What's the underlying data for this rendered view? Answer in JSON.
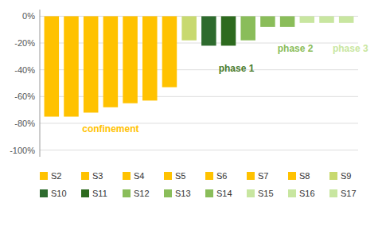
{
  "chart_data": {
    "type": "bar",
    "categories": [
      "S2",
      "S3",
      "S4",
      "S5",
      "S6",
      "S7",
      "S8",
      "S9",
      "S10",
      "S11",
      "S12",
      "S13",
      "S14",
      "S15",
      "S16",
      "S17"
    ],
    "values": [
      -75,
      -75,
      -72,
      -68,
      -65,
      -63,
      -53,
      -18,
      -22,
      -22,
      -18,
      -8,
      -8,
      -5,
      -5,
      -5
    ],
    "colors": [
      "#FFC200",
      "#FFC200",
      "#FFC200",
      "#FFC200",
      "#FFC200",
      "#FFC200",
      "#FFC200",
      "#C8D96F",
      "#2E6B2E",
      "#2D6A1E",
      "#8ABD5A",
      "#8ABD5A",
      "#8ABD5A",
      "#C8E6A0",
      "#C8E6A0",
      "#C8E6A0"
    ],
    "ylim": [
      -105,
      5
    ],
    "yticks": [
      {
        "value": 0,
        "label": "0%"
      },
      {
        "value": -20,
        "label": "-20%"
      },
      {
        "value": -40,
        "label": "-40%"
      },
      {
        "value": -60,
        "label": "-60%"
      },
      {
        "value": -80,
        "label": "-80%"
      },
      {
        "value": -100,
        "label": "-100%"
      }
    ],
    "grid": true,
    "legend": "bottom",
    "annotations": [
      {
        "text": "confinement",
        "x": 3.0,
        "y": -80,
        "color": "#FFC200"
      },
      {
        "text": "phase 1",
        "x": 8.5,
        "y": -35,
        "color": "#4A7C2E"
      },
      {
        "text": "phase 2",
        "x": 11.5,
        "y": -20,
        "color": "#8ABD5A"
      },
      {
        "text": "phase 3",
        "x": 14.3,
        "y": -20,
        "color": "#C8E6A0"
      }
    ]
  }
}
